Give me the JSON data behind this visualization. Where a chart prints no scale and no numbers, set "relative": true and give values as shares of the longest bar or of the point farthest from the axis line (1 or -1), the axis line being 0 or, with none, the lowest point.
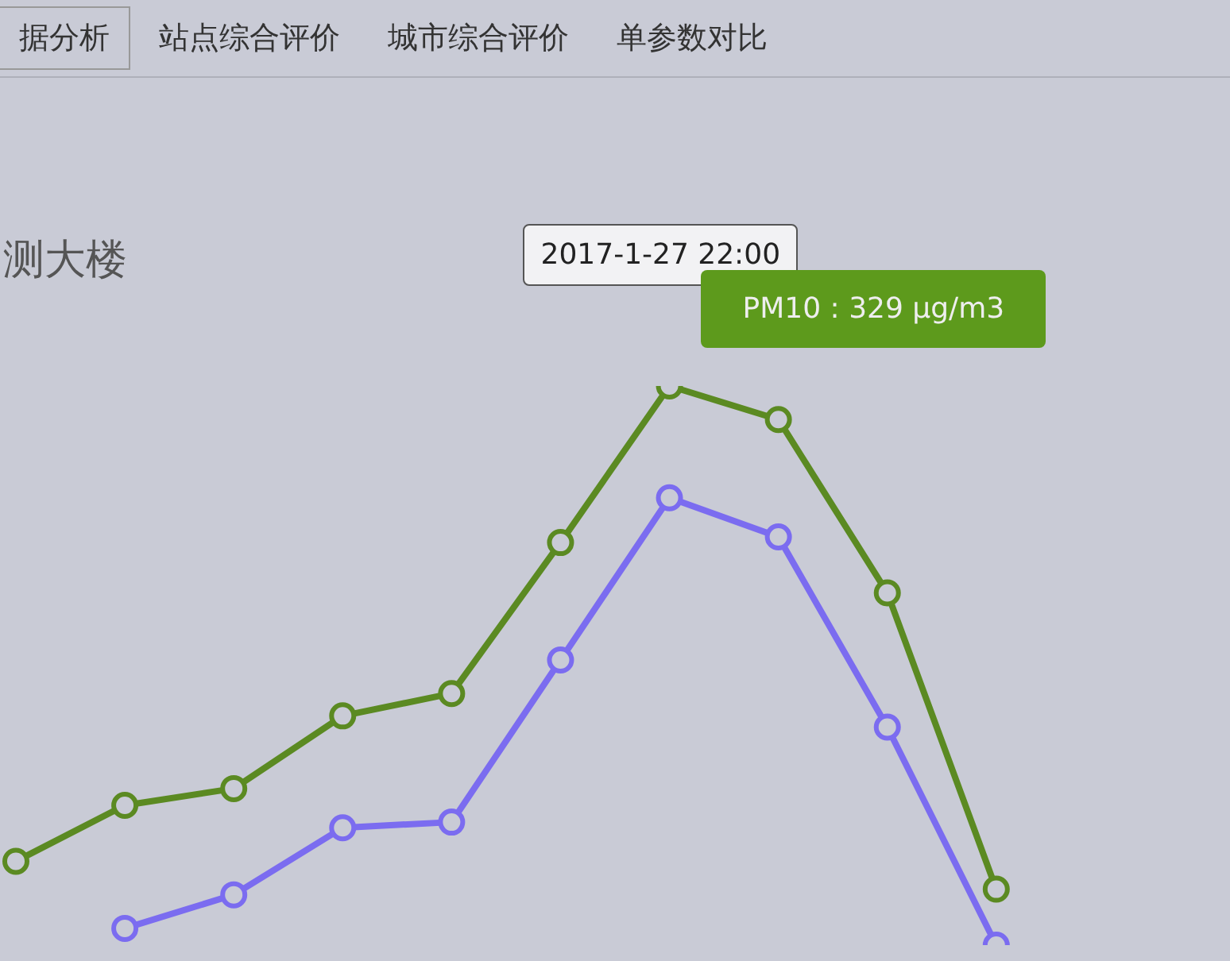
{
  "chart_data": {
    "type": "line",
    "title": "测大楼",
    "relative": true,
    "marker": "circle",
    "line_style": "solid",
    "categories": [
      null,
      null,
      null,
      null,
      null,
      null,
      null,
      null,
      null,
      null,
      null,
      null
    ],
    "series": [
      {
        "color": "#5b8a22",
        "values": [
          0.15,
          0.25,
          0.28,
          0.41,
          0.45,
          0.72,
          1,
          0.94,
          0.63,
          0.1,
          null,
          null
        ]
      },
      {
        "color": "#7b6cf0",
        "values": [
          null,
          0.03,
          0.09,
          0.21,
          0.22,
          0.51,
          0.8,
          0.73,
          0.39,
          0,
          null,
          null
        ]
      }
    ],
    "annotations": [
      "据分析",
      "站点综合评价",
      "城市综合评价",
      "单参数对比",
      "2017-1-27 22:00",
      "PM10 : 329 μg/m3"
    ]
  }
}
